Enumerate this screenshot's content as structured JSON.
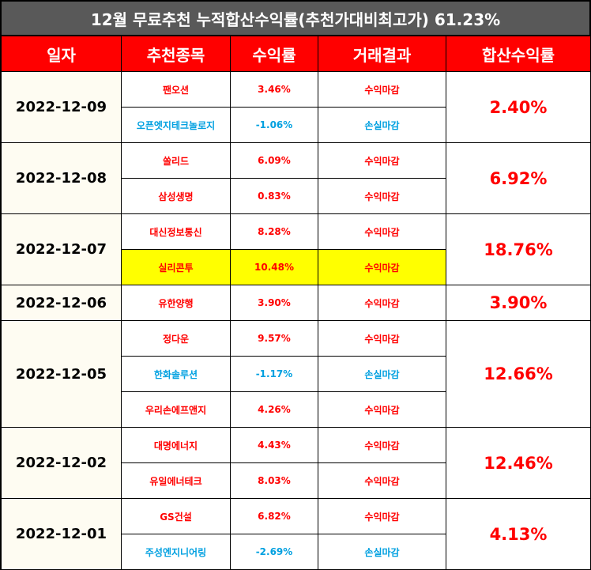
{
  "title": "12월 무료추천 누적합산수익률(추천가대비최고가) 61.23%",
  "headers": [
    "일자",
    "추천종목",
    "수익률",
    "거래결과",
    "합산수익률"
  ],
  "groups": [
    {
      "date": "2022-12-09",
      "total": "2.40%",
      "rows": [
        {
          "stock": "팬오션",
          "rate": "3.46%",
          "result": "수익마감",
          "type": "win"
        },
        {
          "stock": "오픈엣지테크놀로지",
          "rate": "-1.06%",
          "result": "손실마감",
          "type": "loss"
        }
      ]
    },
    {
      "date": "2022-12-08",
      "total": "6.92%",
      "rows": [
        {
          "stock": "쏠리드",
          "rate": "6.09%",
          "result": "수익마감",
          "type": "win"
        },
        {
          "stock": "삼성생명",
          "rate": "0.83%",
          "result": "수익마감",
          "type": "win"
        }
      ]
    },
    {
      "date": "2022-12-07",
      "total": "18.76%",
      "rows": [
        {
          "stock": "대신정보통신",
          "rate": "8.28%",
          "result": "수익마감",
          "type": "win"
        },
        {
          "stock": "실리콘투",
          "rate": "10.48%",
          "result": "수익마감",
          "type": "win",
          "highlight": true
        }
      ]
    },
    {
      "date": "2022-12-06",
      "total": "3.90%",
      "rows": [
        {
          "stock": "유한양행",
          "rate": "3.90%",
          "result": "수익마감",
          "type": "win"
        }
      ]
    },
    {
      "date": "2022-12-05",
      "total": "12.66%",
      "rows": [
        {
          "stock": "정다운",
          "rate": "9.57%",
          "result": "수익마감",
          "type": "win"
        },
        {
          "stock": "한화솔루션",
          "rate": "-1.17%",
          "result": "손실마감",
          "type": "loss"
        },
        {
          "stock": "우리손에프앤지",
          "rate": "4.26%",
          "result": "수익마감",
          "type": "win"
        }
      ]
    },
    {
      "date": "2022-12-02",
      "total": "12.46%",
      "rows": [
        {
          "stock": "대명에너지",
          "rate": "4.43%",
          "result": "수익마감",
          "type": "win"
        },
        {
          "stock": "유일에너테크",
          "rate": "8.03%",
          "result": "수익마감",
          "type": "win"
        }
      ]
    },
    {
      "date": "2022-12-01",
      "total": "4.13%",
      "rows": [
        {
          "stock": "GS건설",
          "rate": "6.82%",
          "result": "수익마감",
          "type": "win"
        },
        {
          "stock": "주성엔지니어링",
          "rate": "-2.69%",
          "result": "손실마감",
          "type": "loss"
        }
      ]
    }
  ],
  "colors": {
    "header_bg": "#ff0000",
    "title_bg": "#595959",
    "win": "#ff0000",
    "loss": "#00a0e0",
    "highlight": "#ffff00"
  }
}
